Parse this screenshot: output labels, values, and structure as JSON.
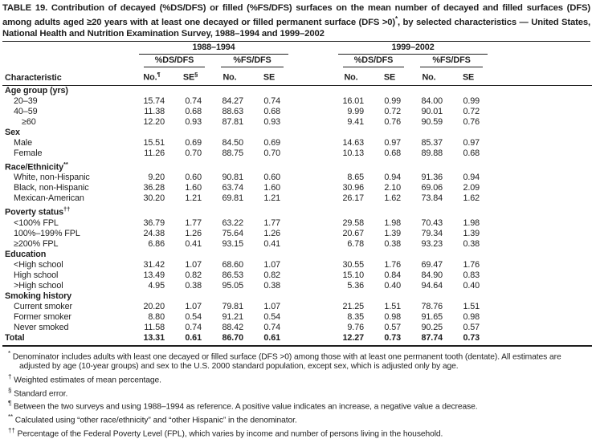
{
  "title": {
    "part1": "TABLE 19. Contribution of decayed (%DS/DFS) or filled (%FS/DFS) surfaces on the mean number of decayed and filled surfaces (DFS) among adults aged ≥20 years with at least one decayed or filled permanent surface (DFS >0)",
    "sup": "*",
    "part2": ", by selected characteristics — United States, National Health and Nutrition Examination Survey, 1988–1994 and 1999–2002"
  },
  "table": {
    "periods": [
      "1988–1994",
      "1999–2002"
    ],
    "measures": [
      "%DS/DFS",
      "%FS/DFS"
    ],
    "characteristic_header": "Characteristic",
    "stat_headers": [
      {
        "label": "No.",
        "sup": "¶"
      },
      {
        "label": "SE",
        "sup": "§"
      },
      {
        "label": "No.",
        "sup": ""
      },
      {
        "label": "SE",
        "sup": ""
      },
      {
        "label": "No.",
        "sup": ""
      },
      {
        "label": "SE",
        "sup": ""
      },
      {
        "label": "No.",
        "sup": ""
      },
      {
        "label": "SE",
        "sup": ""
      }
    ],
    "rows": [
      {
        "type": "section",
        "label": "Age group (yrs)",
        "sup": ""
      },
      {
        "type": "data",
        "label": "20–39",
        "indent": 1,
        "values": [
          "15.74",
          "0.74",
          "84.27",
          "0.74",
          "16.01",
          "0.99",
          "84.00",
          "0.99"
        ]
      },
      {
        "type": "data",
        "label": "40–59",
        "indent": 1,
        "values": [
          "11.38",
          "0.68",
          "88.63",
          "0.68",
          "9.99",
          "0.72",
          "90.01",
          "0.72"
        ]
      },
      {
        "type": "data",
        "label": "≥60",
        "indent": 2,
        "values": [
          "12.20",
          "0.93",
          "87.81",
          "0.93",
          "9.41",
          "0.76",
          "90.59",
          "0.76"
        ]
      },
      {
        "type": "section",
        "label": "Sex",
        "sup": ""
      },
      {
        "type": "data",
        "label": "Male",
        "indent": 1,
        "values": [
          "15.51",
          "0.69",
          "84.50",
          "0.69",
          "14.63",
          "0.97",
          "85.37",
          "0.97"
        ]
      },
      {
        "type": "data",
        "label": "Female",
        "indent": 1,
        "values": [
          "11.26",
          "0.70",
          "88.75",
          "0.70",
          "10.13",
          "0.68",
          "89.88",
          "0.68"
        ]
      },
      {
        "type": "section",
        "label": "Race/Ethnicity",
        "sup": "**"
      },
      {
        "type": "data",
        "label": "White, non-Hispanic",
        "indent": 1,
        "values": [
          "9.20",
          "0.60",
          "90.81",
          "0.60",
          "8.65",
          "0.94",
          "91.36",
          "0.94"
        ]
      },
      {
        "type": "data",
        "label": "Black, non-Hispanic",
        "indent": 1,
        "values": [
          "36.28",
          "1.60",
          "63.74",
          "1.60",
          "30.96",
          "2.10",
          "69.06",
          "2.09"
        ]
      },
      {
        "type": "data",
        "label": "Mexican-American",
        "indent": 1,
        "values": [
          "30.20",
          "1.21",
          "69.81",
          "1.21",
          "26.17",
          "1.62",
          "73.84",
          "1.62"
        ]
      },
      {
        "type": "section",
        "label": "Poverty status",
        "sup": "††"
      },
      {
        "type": "data",
        "label": "<100% FPL",
        "indent": 1,
        "values": [
          "36.79",
          "1.77",
          "63.22",
          "1.77",
          "29.58",
          "1.98",
          "70.43",
          "1.98"
        ]
      },
      {
        "type": "data",
        "label": "100%–199% FPL",
        "indent": 1,
        "values": [
          "24.38",
          "1.26",
          "75.64",
          "1.26",
          "20.67",
          "1.39",
          "79.34",
          "1.39"
        ]
      },
      {
        "type": "data",
        "label": "≥200% FPL",
        "indent": 1,
        "values": [
          "6.86",
          "0.41",
          "93.15",
          "0.41",
          "6.78",
          "0.38",
          "93.23",
          "0.38"
        ]
      },
      {
        "type": "section",
        "label": "Education",
        "sup": ""
      },
      {
        "type": "data",
        "label": "<High school",
        "indent": 1,
        "values": [
          "31.42",
          "1.07",
          "68.60",
          "1.07",
          "30.55",
          "1.76",
          "69.47",
          "1.76"
        ]
      },
      {
        "type": "data",
        "label": "High school",
        "indent": 1,
        "values": [
          "13.49",
          "0.82",
          "86.53",
          "0.82",
          "15.10",
          "0.84",
          "84.90",
          "0.83"
        ]
      },
      {
        "type": "data",
        "label": ">High school",
        "indent": 1,
        "values": [
          "4.95",
          "0.38",
          "95.05",
          "0.38",
          "5.36",
          "0.40",
          "94.64",
          "0.40"
        ]
      },
      {
        "type": "section",
        "label": "Smoking history",
        "sup": ""
      },
      {
        "type": "data",
        "label": "Current smoker",
        "indent": 1,
        "values": [
          "20.20",
          "1.07",
          "79.81",
          "1.07",
          "21.25",
          "1.51",
          "78.76",
          "1.51"
        ]
      },
      {
        "type": "data",
        "label": "Former smoker",
        "indent": 1,
        "values": [
          "8.80",
          "0.54",
          "91.21",
          "0.54",
          "8.35",
          "0.98",
          "91.65",
          "0.98"
        ]
      },
      {
        "type": "data",
        "label": "Never smoked",
        "indent": 1,
        "values": [
          "11.58",
          "0.74",
          "88.42",
          "0.74",
          "9.76",
          "0.57",
          "90.25",
          "0.57"
        ]
      },
      {
        "type": "total",
        "label": "Total",
        "sup": "",
        "values": [
          "13.31",
          "0.61",
          "86.70",
          "0.61",
          "12.27",
          "0.73",
          "87.74",
          "0.73"
        ]
      }
    ]
  },
  "footnotes": [
    {
      "marker": "*",
      "text": "Denominator includes adults with least one decayed or filled surface (DFS >0) among those with at least one permanent tooth (dentate).  All estimates are adjusted by age (10-year groups) and sex to the U.S. 2000 standard population, except sex, which is adjusted only by age."
    },
    {
      "marker": "†",
      "text": "Weighted estimates of mean percentage."
    },
    {
      "marker": "§",
      "text": "Standard error."
    },
    {
      "marker": "¶",
      "text": "Between the two surveys and using 1988–1994 as reference. A positive value indicates an increase, a negative value a decrease."
    },
    {
      "marker": "**",
      "text": "Calculated using “other race/ethnicity” and “other Hispanic” in the denominator."
    },
    {
      "marker": "††",
      "text": "Percentage of the Federal Poverty Level (FPL), which varies by income and number of persons living in the household."
    }
  ]
}
